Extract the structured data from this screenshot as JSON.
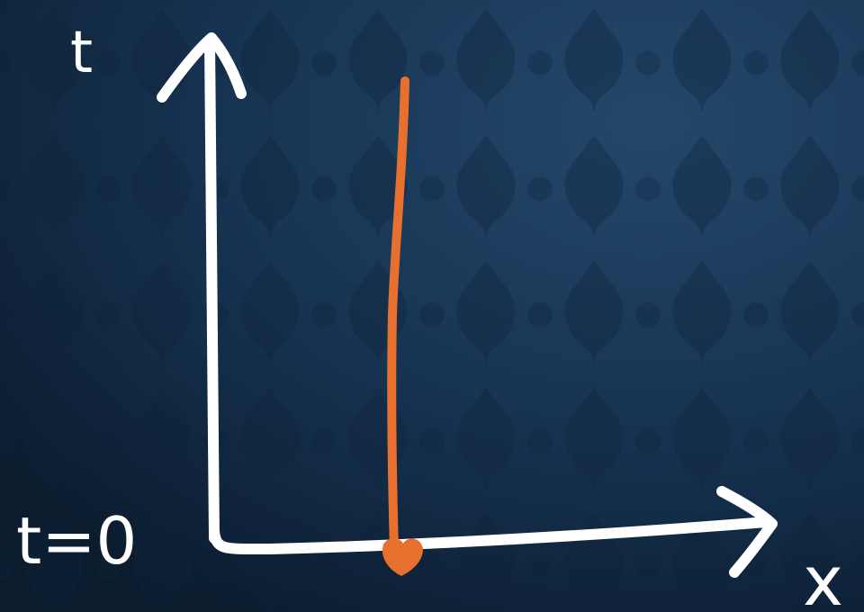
{
  "labels": {
    "t_axis": "t",
    "origin": "t=0",
    "x_axis": "x"
  }
}
